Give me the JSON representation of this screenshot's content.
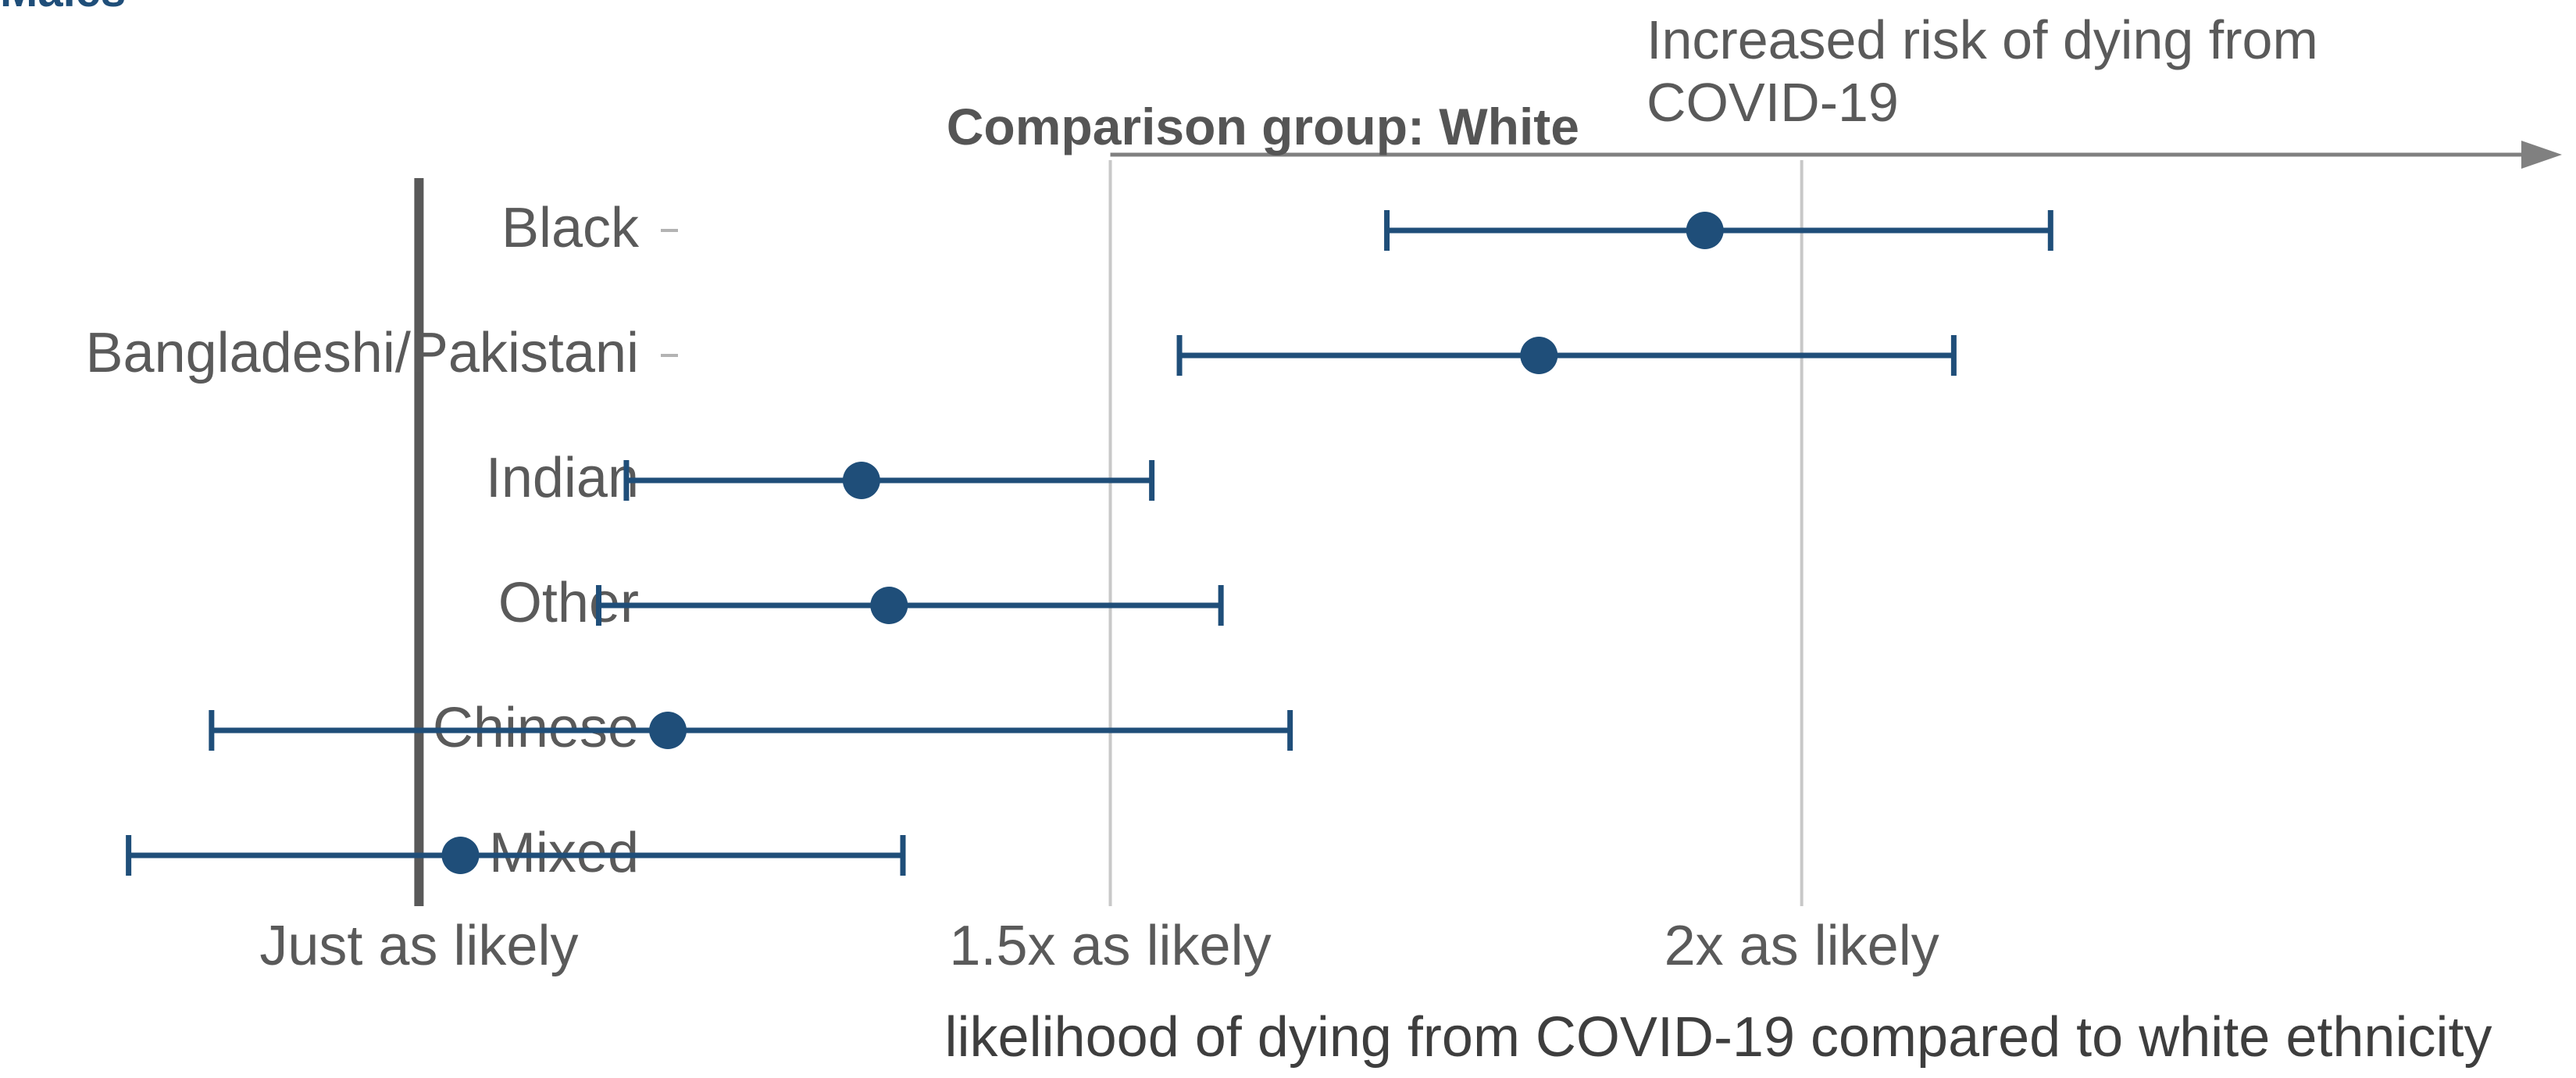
{
  "chart_data": {
    "type": "scatter",
    "title": "Males",
    "reference_label": "Comparison group: White",
    "direction_label_lines": [
      "Increased risk of dying from",
      "COVID-19"
    ],
    "xlabel": "likelihood of dying from COVID-19 compared to white ethnicity",
    "x_ticks": [
      {
        "value": 1.0,
        "label": "Just as likely"
      },
      {
        "value": 1.5,
        "label": "1.5x as likely"
      },
      {
        "value": 2.0,
        "label": "2x as likely"
      }
    ],
    "xlim": [
      0.697,
      2.56
    ],
    "reference_value": 1.0,
    "grid_x": [
      1.5,
      2.0
    ],
    "categories": [
      "Black",
      "Bangladeshi/Pakistani",
      "Indian",
      "Other",
      "Chinese",
      "Mixed"
    ],
    "series": [
      {
        "values": [
          1.93,
          1.81,
          1.32,
          1.34,
          1.18,
          1.03
        ],
        "lower": [
          1.7,
          1.55,
          1.15,
          1.13,
          0.85,
          0.79
        ],
        "upper": [
          2.18,
          2.11,
          1.53,
          1.58,
          1.63,
          1.35
        ]
      }
    ],
    "colors": {
      "point": "#1f4e79",
      "reference": "#595959",
      "grid": "#c8c8c8",
      "arrow": "#808080"
    }
  }
}
